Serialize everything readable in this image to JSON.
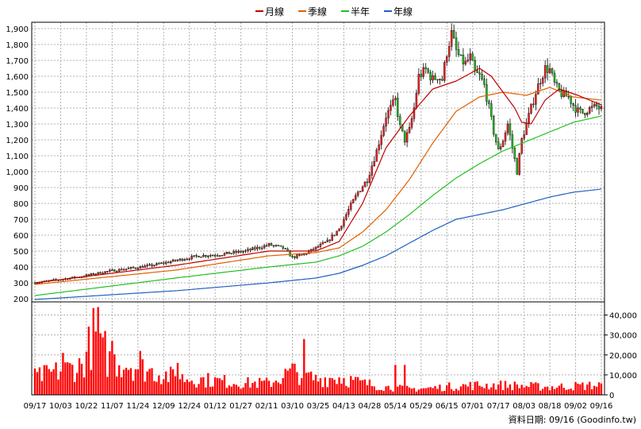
{
  "chart_data": [
    {
      "type": "candlestick-with-lines",
      "legend": {
        "placement": "top-center",
        "items": [
          {
            "label": "月線",
            "color": "#c00000"
          },
          {
            "label": "季線",
            "color": "#e06000"
          },
          {
            "label": "半年",
            "color": "#22c022"
          },
          {
            "label": "年線",
            "color": "#2060c0"
          }
        ]
      },
      "y_ticks": [
        "1,900",
        "1,800",
        "1,700",
        "1,600",
        "1,500",
        "1,400",
        "1,300",
        "1,200",
        "1,100",
        "1,000",
        "900",
        "800",
        "700",
        "600",
        "500",
        "400",
        "300",
        "200"
      ],
      "ylim": [
        200,
        1920
      ],
      "grid": true,
      "x_ticks": [
        "09/17",
        "10/03",
        "10/22",
        "11/07",
        "11/24",
        "12/09",
        "12/24",
        "01/12",
        "01/27",
        "02/11",
        "03/10",
        "03/25",
        "04/13",
        "04/28",
        "05/14",
        "05/29",
        "06/15",
        "07/01",
        "07/17",
        "08/03",
        "08/18",
        "09/02",
        "09/16"
      ],
      "x_index": [
        0,
        11,
        22,
        33,
        44,
        55,
        66,
        77,
        88,
        99,
        110,
        121,
        132,
        143,
        154,
        165,
        176,
        187,
        198,
        209,
        220,
        231,
        242
      ],
      "price_keypoints": [
        [
          0,
          300
        ],
        [
          10,
          320
        ],
        [
          20,
          340
        ],
        [
          30,
          370
        ],
        [
          40,
          390
        ],
        [
          50,
          410
        ],
        [
          60,
          440
        ],
        [
          70,
          470
        ],
        [
          80,
          480
        ],
        [
          90,
          500
        ],
        [
          100,
          540
        ],
        [
          106,
          520
        ],
        [
          110,
          460
        ],
        [
          115,
          480
        ],
        [
          120,
          520
        ],
        [
          125,
          560
        ],
        [
          130,
          640
        ],
        [
          134,
          760
        ],
        [
          138,
          870
        ],
        [
          142,
          950
        ],
        [
          146,
          1130
        ],
        [
          150,
          1350
        ],
        [
          154,
          1450
        ],
        [
          156,
          1280
        ],
        [
          158,
          1200
        ],
        [
          160,
          1260
        ],
        [
          162,
          1400
        ],
        [
          164,
          1600
        ],
        [
          167,
          1640
        ],
        [
          170,
          1580
        ],
        [
          172,
          1600
        ],
        [
          174,
          1580
        ],
        [
          176,
          1750
        ],
        [
          178,
          1870
        ],
        [
          180,
          1760
        ],
        [
          182,
          1700
        ],
        [
          184,
          1680
        ],
        [
          186,
          1720
        ],
        [
          188,
          1620
        ],
        [
          190,
          1600
        ],
        [
          192,
          1540
        ],
        [
          194,
          1400
        ],
        [
          196,
          1250
        ],
        [
          198,
          1130
        ],
        [
          200,
          1200
        ],
        [
          202,
          1300
        ],
        [
          204,
          1150
        ],
        [
          206,
          1000
        ],
        [
          208,
          1200
        ],
        [
          210,
          1300
        ],
        [
          212,
          1400
        ],
        [
          214,
          1500
        ],
        [
          216,
          1580
        ],
        [
          218,
          1650
        ],
        [
          220,
          1640
        ],
        [
          222,
          1550
        ],
        [
          224,
          1500
        ],
        [
          226,
          1480
        ],
        [
          228,
          1470
        ],
        [
          230,
          1420
        ],
        [
          232,
          1380
        ],
        [
          234,
          1370
        ],
        [
          236,
          1390
        ],
        [
          238,
          1400
        ],
        [
          240,
          1410
        ],
        [
          242,
          1390
        ]
      ],
      "ma_monthly_keypoints": [
        [
          0,
          300
        ],
        [
          60,
          410
        ],
        [
          100,
          500
        ],
        [
          110,
          500
        ],
        [
          120,
          500
        ],
        [
          130,
          560
        ],
        [
          140,
          800
        ],
        [
          150,
          1150
        ],
        [
          160,
          1350
        ],
        [
          170,
          1520
        ],
        [
          180,
          1570
        ],
        [
          190,
          1650
        ],
        [
          195,
          1600
        ],
        [
          200,
          1500
        ],
        [
          205,
          1400
        ],
        [
          208,
          1310
        ],
        [
          212,
          1300
        ],
        [
          218,
          1450
        ],
        [
          224,
          1520
        ],
        [
          232,
          1480
        ],
        [
          242,
          1420
        ]
      ],
      "ma_quarterly_keypoints": [
        [
          0,
          290
        ],
        [
          60,
          380
        ],
        [
          100,
          470
        ],
        [
          120,
          490
        ],
        [
          130,
          520
        ],
        [
          140,
          620
        ],
        [
          150,
          760
        ],
        [
          160,
          950
        ],
        [
          170,
          1180
        ],
        [
          180,
          1380
        ],
        [
          190,
          1470
        ],
        [
          200,
          1500
        ],
        [
          210,
          1480
        ],
        [
          220,
          1530
        ],
        [
          230,
          1470
        ],
        [
          242,
          1450
        ]
      ],
      "ma_halfyear_keypoints": [
        [
          0,
          220
        ],
        [
          60,
          330
        ],
        [
          100,
          400
        ],
        [
          120,
          430
        ],
        [
          130,
          470
        ],
        [
          140,
          530
        ],
        [
          150,
          620
        ],
        [
          160,
          730
        ],
        [
          170,
          850
        ],
        [
          180,
          960
        ],
        [
          190,
          1050
        ],
        [
          200,
          1130
        ],
        [
          210,
          1190
        ],
        [
          220,
          1250
        ],
        [
          230,
          1310
        ],
        [
          242,
          1350
        ]
      ],
      "ma_yearly_keypoints": [
        [
          0,
          195
        ],
        [
          60,
          250
        ],
        [
          100,
          300
        ],
        [
          120,
          330
        ],
        [
          130,
          360
        ],
        [
          140,
          410
        ],
        [
          150,
          470
        ],
        [
          160,
          550
        ],
        [
          170,
          630
        ],
        [
          180,
          700
        ],
        [
          190,
          730
        ],
        [
          200,
          760
        ],
        [
          210,
          800
        ],
        [
          220,
          840
        ],
        [
          230,
          870
        ],
        [
          242,
          890
        ]
      ]
    },
    {
      "type": "bar",
      "name": "volume",
      "y_ticks": [
        "40,000",
        "30,000",
        "20,000",
        "10,000",
        "0"
      ],
      "ylim": [
        0,
        45000
      ],
      "color": "#ff0000",
      "volume_keypoints": [
        [
          0,
          9000
        ],
        [
          10,
          12000
        ],
        [
          20,
          15000
        ],
        [
          25,
          30000
        ],
        [
          30,
          18000
        ],
        [
          40,
          16000
        ],
        [
          50,
          12000
        ],
        [
          60,
          9000
        ],
        [
          70,
          8000
        ],
        [
          80,
          7000
        ],
        [
          90,
          6000
        ],
        [
          100,
          6000
        ],
        [
          110,
          12000
        ],
        [
          120,
          8000
        ],
        [
          130,
          9000
        ],
        [
          140,
          6000
        ],
        [
          150,
          4000
        ],
        [
          160,
          3000
        ],
        [
          170,
          3500
        ],
        [
          180,
          4500
        ],
        [
          190,
          5000
        ],
        [
          200,
          5000
        ],
        [
          210,
          4500
        ],
        [
          220,
          4000
        ],
        [
          230,
          4500
        ],
        [
          242,
          5000
        ]
      ],
      "volume_spikes": [
        [
          27,
          44000
        ],
        [
          30,
          32000
        ],
        [
          33,
          27000
        ],
        [
          115,
          28000
        ],
        [
          45,
          22000
        ],
        [
          12,
          21000
        ],
        [
          61,
          16000
        ],
        [
          154,
          15000
        ],
        [
          158,
          15000
        ]
      ]
    }
  ],
  "footer": {
    "text": "資料日期: 09/16  (Goodinfo.tw)"
  }
}
